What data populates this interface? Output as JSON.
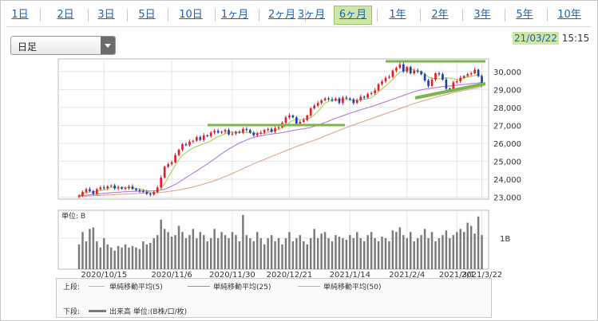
{
  "tabs": [
    "1日",
    "2日",
    "3日",
    "5日",
    "10日",
    "1ヶ月",
    "2ヶ月",
    "3ヶ月",
    "6ヶ月",
    "1年",
    "2年",
    "3年",
    "5年",
    "10年"
  ],
  "active_tab": "6ヶ月",
  "period_select": {
    "value": "日足"
  },
  "timestamp": {
    "date": "21/03/22",
    "time": "15:15"
  },
  "legend": {
    "upper_label": "上段:",
    "lower_label": "下段:",
    "ma5": "単純移動平均(5)",
    "ma25": "単純移動平均(25)",
    "ma50": "単純移動平均(50)",
    "volume": "出来高 単位:(B株/口/枚)"
  },
  "colors": {
    "active_tab": "#cfe7a6",
    "up_candle": "#e0212b",
    "down_candle": "#1f3fae",
    "ma5": "#a8cf5a",
    "ma25": "#b07ad8",
    "ma50": "#e0a48a",
    "annotation": "#7ab648",
    "volume": "#7a7a7a"
  },
  "chart_data": {
    "type": "candlestick",
    "price_axis": {
      "ticks": [
        23000,
        24000,
        25000,
        26000,
        27000,
        28000,
        29000,
        30000
      ],
      "tick_labels": [
        "23,000",
        "24,000",
        "25,000",
        "26,000",
        "27,000",
        "28,000",
        "29,000",
        "30,000"
      ],
      "ylim": [
        22900,
        30700
      ]
    },
    "date_labels": [
      "2020/10/15",
      "2020/11/6",
      "2020/11/30",
      "2020/12/21",
      "2021/1/14",
      "2021/2/4",
      "2021/3/1",
      "2021/3/22"
    ],
    "closes": [
      23100,
      23300,
      23450,
      23350,
      23200,
      23450,
      23550,
      23500,
      23620,
      23650,
      23500,
      23550,
      23480,
      23520,
      23600,
      23470,
      23400,
      23350,
      23300,
      23200,
      23150,
      23300,
      23550,
      24100,
      24700,
      24850,
      24950,
      25350,
      25650,
      25950,
      25900,
      26100,
      26150,
      26350,
      26200,
      26450,
      26400,
      26600,
      26700,
      26600,
      26650,
      26750,
      26500,
      26550,
      26650,
      26600,
      26800,
      26750,
      26600,
      26450,
      26550,
      26600,
      26750,
      26800,
      26650,
      26850,
      26900,
      27150,
      27450,
      27550,
      27450,
      27100,
      27200,
      27300,
      27550,
      27950,
      28100,
      28250,
      28400,
      28500,
      28450,
      28400,
      28500,
      28250,
      28550,
      28500,
      28450,
      28250,
      28400,
      28600,
      28550,
      28750,
      28800,
      28950,
      29300,
      29450,
      29650,
      29700,
      30050,
      30200,
      30400,
      30000,
      30250,
      29900,
      30050,
      30000,
      29850,
      29500,
      29200,
      29550,
      29900,
      29850,
      29550,
      29050,
      28950,
      29400,
      29450,
      29650,
      29750,
      29850,
      29900,
      30100,
      29750,
      29250
    ],
    "ma5": [
      23100,
      23200,
      23283,
      23300,
      23280,
      23350,
      23400,
      23410,
      23464,
      23554,
      23564,
      23564,
      23560,
      23540,
      23530,
      23524,
      23494,
      23468,
      23424,
      23344,
      23254,
      23240,
      23300,
      23460,
      23760,
      24100,
      24450,
      24790,
      25100,
      25350,
      25480,
      25620,
      25750,
      25840,
      25900,
      26000,
      26050,
      26140,
      26270,
      26390,
      26450,
      26540,
      26630,
      26620,
      26610,
      26620,
      26620,
      26610,
      26600,
      26560,
      26570,
      26560,
      26550,
      26600,
      26670,
      26730,
      26780,
      26870,
      26970,
      27160,
      27290,
      27340,
      27330,
      27340,
      27380,
      27420,
      27590,
      27790,
      28010,
      28240,
      28340,
      28400,
      28410,
      28420,
      28420,
      28440,
      28430,
      28400,
      28400,
      28430,
      28460,
      28490,
      28550,
      28680,
      28850,
      29040,
      29190,
      29370,
      29560,
      29780,
      29950,
      30040,
      30110,
      30150,
      30080,
      30000,
      30020,
      29860,
      29700,
      29620,
      29610,
      29600,
      29620,
      29640,
      29630,
      29590,
      29560,
      29530,
      29650,
      29700,
      29730,
      29770,
      29810,
      29690
    ],
    "ma25": [
      23100,
      23100,
      23120,
      23140,
      23160,
      23180,
      23200,
      23220,
      23240,
      23260,
      23270,
      23280,
      23300,
      23310,
      23320,
      23330,
      23340,
      23340,
      23350,
      23350,
      23350,
      23360,
      23380,
      23400,
      23450,
      23530,
      23620,
      23720,
      23840,
      23970,
      24100,
      24220,
      24350,
      24470,
      24600,
      24730,
      24860,
      25000,
      25140,
      25280,
      25420,
      25560,
      25690,
      25800,
      25920,
      26020,
      26110,
      26190,
      26270,
      26330,
      26390,
      26420,
      26460,
      26490,
      26520,
      26550,
      26570,
      26600,
      26640,
      26680,
      26720,
      26760,
      26790,
      26810,
      26850,
      26890,
      26950,
      27020,
      27090,
      27160,
      27240,
      27320,
      27400,
      27470,
      27540,
      27610,
      27680,
      27750,
      27810,
      27870,
      27930,
      27990,
      28050,
      28110,
      28180,
      28250,
      28320,
      28390,
      28460,
      28530,
      28600,
      28670,
      28740,
      28810,
      28880,
      28930,
      28980,
      29020,
      29040,
      29080,
      29100,
      29130,
      29160,
      29180,
      29200,
      29220,
      29240,
      29260,
      29280,
      29300,
      29320,
      29350,
      29370,
      29390
    ],
    "ma50": [
      23050,
      23060,
      23070,
      23080,
      23090,
      23100,
      23110,
      23120,
      23130,
      23140,
      23150,
      23160,
      23170,
      23180,
      23190,
      23200,
      23210,
      23220,
      23230,
      23240,
      23250,
      23260,
      23270,
      23280,
      23300,
      23320,
      23350,
      23380,
      23410,
      23450,
      23490,
      23530,
      23580,
      23630,
      23680,
      23740,
      23800,
      23860,
      23930,
      24000,
      24080,
      24160,
      24240,
      24330,
      24420,
      24510,
      24600,
      24690,
      24780,
      24870,
      24950,
      25030,
      25110,
      25190,
      25270,
      25350,
      25430,
      25510,
      25590,
      25670,
      25750,
      25830,
      25900,
      25970,
      26040,
      26110,
      26180,
      26250,
      26330,
      26410,
      26490,
      26570,
      26650,
      26730,
      26810,
      26890,
      26960,
      27030,
      27100,
      27170,
      27240,
      27310,
      27380,
      27450,
      27520,
      27590,
      27660,
      27730,
      27800,
      27870,
      27940,
      28010,
      28080,
      28150,
      28220,
      28280,
      28340,
      28400,
      28450,
      28510,
      28570,
      28620,
      28670,
      28720,
      28770,
      28820,
      28870,
      28910,
      28950,
      28990,
      29030,
      29070,
      29110,
      29150
    ],
    "volume_axis": {
      "unit_label": "単位: B",
      "tick_label": "1B"
    },
    "volume": [
      0.8,
      1.2,
      0.9,
      1.3,
      1.35,
      0.9,
      0.7,
      1.0,
      0.8,
      0.7,
      0.6,
      0.75,
      0.7,
      0.8,
      0.7,
      0.75,
      0.7,
      0.65,
      0.9,
      0.8,
      0.85,
      1.0,
      1.1,
      1.6,
      1.3,
      1.2,
      1.05,
      1.1,
      1.4,
      1.2,
      1.0,
      1.1,
      1.3,
      1.0,
      1.2,
      1.1,
      0.9,
      1.0,
      1.3,
      1.0,
      1.2,
      1.1,
      1.0,
      1.2,
      1.1,
      0.9,
      1.75,
      1.1,
      1.0,
      0.9,
      1.2,
      1.0,
      0.8,
      1.0,
      1.1,
      0.9,
      1.0,
      0.8,
      1.0,
      1.2,
      0.9,
      1.0,
      1.1,
      0.9,
      0.8,
      1.0,
      1.3,
      1.0,
      1.15,
      1.2,
      1.0,
      0.9,
      1.1,
      1.05,
      1.0,
      0.95,
      1.1,
      1.0,
      1.2,
      1.0,
      0.9,
      1.1,
      1.2,
      1.0,
      0.9,
      1.05,
      1.0,
      0.9,
      1.25,
      1.2,
      1.35,
      1.1,
      1.0,
      1.2,
      0.9,
      1.0,
      1.1,
      1.3,
      1.0,
      1.2,
      0.9,
      1.0,
      1.1,
      1.25,
      1.0,
      1.1,
      1.2,
      1.3,
      1.2,
      1.5,
      1.4,
      1.15,
      1.7,
      1.1
    ]
  }
}
